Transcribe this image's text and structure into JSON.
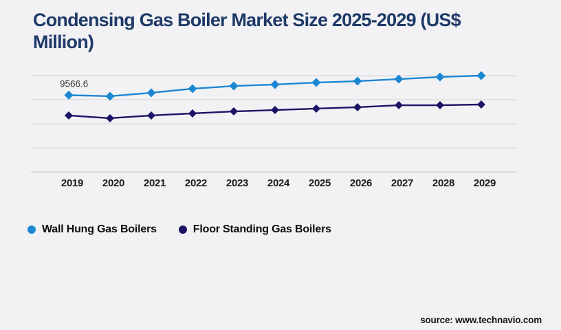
{
  "title": "Condensing Gas Boiler Market Size 2025-2029 (US$ Million)",
  "source": "source: www.technavio.com",
  "colors": {
    "background": "#f2f2f5",
    "title": "#1f3a68",
    "grid": "#d9d9d9",
    "axis": "#cfcfcf",
    "tick": "#1b1b1b",
    "annotation": "#3a3a3a",
    "series1": "#1b87d3",
    "series2": "#1b1464"
  },
  "legend": {
    "items": [
      {
        "label": "Wall Hung Gas Boilers",
        "color": "#1b87d3"
      },
      {
        "label": "Floor Standing Gas Boilers",
        "color": "#1b1464"
      }
    ]
  },
  "chart_data": {
    "type": "line",
    "title": "Condensing Gas Boiler Market Size 2025-2029 (US$ Million)",
    "x_labels": [
      "2019",
      "2020",
      "2021",
      "2022",
      "2023",
      "2024",
      "2025",
      "2026",
      "2027",
      "2028",
      "2029"
    ],
    "series": [
      {
        "name": "Wall Hung Gas Boilers",
        "color": "#1b87d3",
        "marker": "diamond",
        "values": [
          9566.6,
          9430,
          9860,
          10370,
          10710,
          10890,
          11140,
          11310,
          11570,
          11830,
          12000
        ]
      },
      {
        "name": "Floor Standing Gas Boilers",
        "color": "#1b1464",
        "marker": "diamond",
        "values": [
          7030,
          6690,
          7030,
          7290,
          7540,
          7710,
          7890,
          8060,
          8310,
          8310,
          8400
        ]
      }
    ],
    "ylim": [
      0,
      12000
    ],
    "gridline_step": 3000,
    "grid": true,
    "y_axis_labels_shown": false,
    "legend_position": "bottom-left",
    "annotations": [
      {
        "series_index": 0,
        "x_index": 0,
        "text": "9566.6"
      }
    ]
  }
}
